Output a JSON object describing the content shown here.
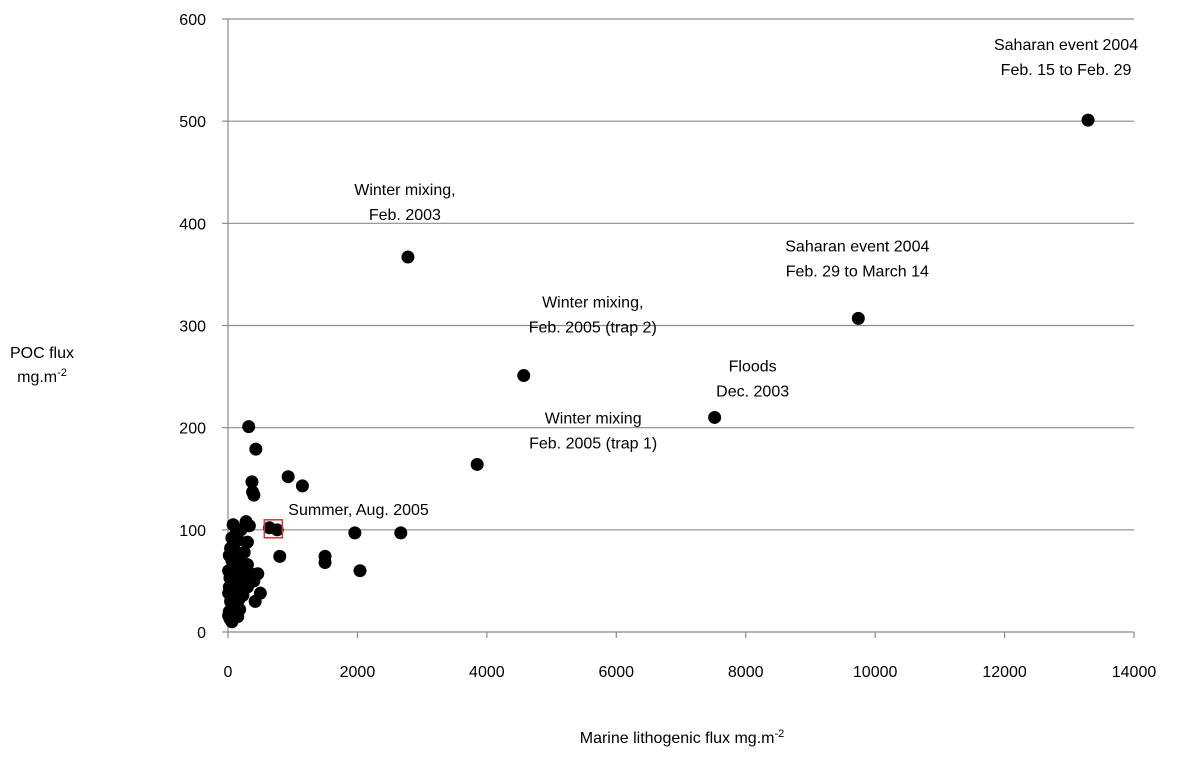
{
  "chart_data": {
    "type": "scatter",
    "x_label": "Marine lithogenic flux mg.m",
    "x_label_sup": "-2",
    "y_label": [
      "POC flux",
      "mg.m"
    ],
    "y_label_sup": "-2",
    "xlim": [
      0,
      14000
    ],
    "xticks": [
      0,
      2000,
      4000,
      6000,
      8000,
      10000,
      12000,
      14000
    ],
    "ylim": [
      0,
      600
    ],
    "yticks": [
      0,
      100,
      200,
      300,
      400,
      500,
      600
    ],
    "grid": true,
    "series": [
      {
        "color": "#000000",
        "marker": "circle",
        "x": [
          13290,
          2780,
          9740,
          4570,
          7520,
          3850,
          320,
          430,
          370,
          380,
          400,
          930,
          1150,
          1960,
          2670,
          1500,
          1500,
          2040,
          800,
          640,
          760,
          280,
          80,
          330,
          200,
          120,
          60,
          160,
          300,
          40,
          100,
          250,
          20,
          180,
          60,
          300,
          130,
          220,
          10,
          80,
          350,
          460,
          160,
          30,
          260,
          400,
          100,
          200,
          20,
          300,
          140,
          60,
          10,
          500,
          230,
          90,
          170,
          40,
          420,
          120,
          60,
          180,
          20,
          90,
          150,
          30,
          60,
          10
        ],
        "y": [
          501,
          367,
          307,
          251,
          210,
          164,
          201,
          179,
          147,
          137,
          134,
          152,
          143,
          97,
          97,
          74,
          68,
          60,
          74,
          102,
          100,
          108,
          105,
          104,
          100,
          96,
          92,
          90,
          88,
          82,
          80,
          78,
          75,
          72,
          70,
          66,
          64,
          62,
          60,
          58,
          57,
          57,
          55,
          53,
          52,
          50,
          48,
          46,
          44,
          44,
          42,
          40,
          38,
          38,
          36,
          34,
          32,
          30,
          30,
          28,
          25,
          22,
          20,
          18,
          15,
          13,
          10,
          16
        ]
      },
      {
        "color": "#e03030",
        "marker": "square",
        "x": [
          700
        ],
        "y": [
          101
        ]
      }
    ],
    "annotations": [
      {
        "lines": [
          "Saharan event 2004",
          "Feb. 15 to Feb. 29"
        ]
      },
      {
        "lines": [
          "Winter mixing,",
          "Feb. 2003"
        ]
      },
      {
        "lines": [
          "Saharan event 2004",
          "Feb. 29 to March 14"
        ]
      },
      {
        "lines": [
          "Winter mixing,",
          "Feb. 2005 (trap 2)"
        ]
      },
      {
        "lines": [
          "Floods",
          "Dec. 2003"
        ]
      },
      {
        "lines": [
          "Winter mixing",
          "Feb. 2005 (trap 1)"
        ]
      },
      {
        "lines": [
          "Summer, Aug. 2005"
        ]
      }
    ]
  }
}
